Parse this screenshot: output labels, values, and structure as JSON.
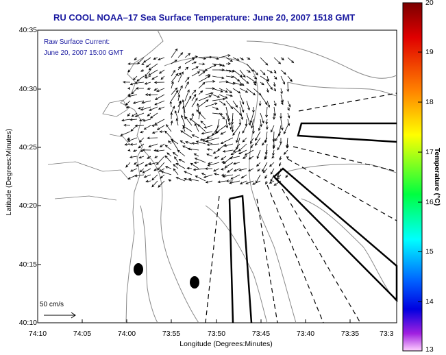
{
  "title": "RU COOL   NOAA–17  Sea Surface Temperature:  June 20, 2007 1518 GMT",
  "inset": {
    "line1": "Raw Surface Current:",
    "line2": "June 20, 2007 15:00 GMT"
  },
  "scale_label": "50 cm/s",
  "axes": {
    "x_title": "Longitude (Degrees:Minutes)",
    "y_title": "Latitude (Degrees:Minutes)",
    "x_ticks": [
      "74:10",
      "74:05",
      "74:00",
      "73:55",
      "73:50",
      "73:45",
      "73:40",
      "73:35",
      "73:3"
    ],
    "y_ticks": [
      "40:35",
      "40:30",
      "40:25",
      "40:20",
      "40:15",
      "40:10"
    ]
  },
  "colorbar": {
    "title": "Temperature (°C)",
    "ticks": [
      "20",
      "19",
      "18",
      "17",
      "16",
      "15",
      "14",
      "13"
    ],
    "range": [
      13,
      20
    ],
    "colors": [
      "#8a0000",
      "#e00000",
      "#ff7f00",
      "#ffff00",
      "#00ff40",
      "#00ffff",
      "#0080ff",
      "#0000ff",
      "#8000c0",
      "#ff40ff",
      "#ffd0ff"
    ]
  }
}
